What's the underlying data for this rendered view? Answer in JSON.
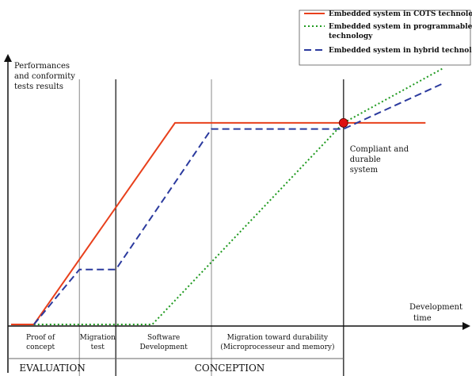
{
  "chart_data": {
    "type": "line",
    "ylabel": [
      "Performances",
      "and conformity",
      "tests results"
    ],
    "xlabel": [
      "Development",
      "time"
    ],
    "x_range": [
      0,
      10
    ],
    "y_range": [
      0,
      10
    ],
    "phases": [
      {
        "label": [
          "Proof of",
          "concept"
        ],
        "start": 0.0,
        "end": 1.5
      },
      {
        "label": [
          "Migration",
          "test"
        ],
        "start": 1.5,
        "end": 2.3
      },
      {
        "label": [
          "Software",
          "Development"
        ],
        "start": 2.3,
        "end": 4.4
      },
      {
        "label": [
          "Migration toward durability",
          "(Microprocesseur and memory)"
        ],
        "start": 4.4,
        "end": 7.3
      }
    ],
    "groups": [
      {
        "label": "EVALUATION",
        "start": 0.0,
        "end": 2.3
      },
      {
        "label": "CONCEPTION",
        "start": 2.3,
        "end": 7.3
      }
    ],
    "series": [
      {
        "name": "Embedded system in COTS technology",
        "color": "#e8401c",
        "dash": "solid",
        "points": [
          [
            0.0,
            0.0
          ],
          [
            0.5,
            0.0
          ],
          [
            3.6,
            6.6
          ],
          [
            9.1,
            6.6
          ]
        ]
      },
      {
        "name": "Embedded system in programmable technology",
        "color": "#1f9a1f",
        "dash": "dotted",
        "points": [
          [
            0.5,
            0.0
          ],
          [
            3.1,
            0.0
          ],
          [
            7.3,
            6.6
          ],
          [
            9.5,
            8.4
          ]
        ]
      },
      {
        "name": "Embedded system in hybrid technology",
        "color": "#2b3a9e",
        "dash": "dashed",
        "points": [
          [
            0.5,
            0.0
          ],
          [
            1.5,
            1.8
          ],
          [
            2.3,
            1.8
          ],
          [
            4.4,
            6.4
          ],
          [
            7.3,
            6.4
          ],
          [
            9.5,
            7.9
          ]
        ]
      }
    ],
    "annotations": [
      {
        "text": [
          "Compliant and",
          "durable",
          "system"
        ],
        "x": 7.3,
        "y": 6.6,
        "marker_color": "#dd1111"
      }
    ],
    "legend": "top-right"
  }
}
